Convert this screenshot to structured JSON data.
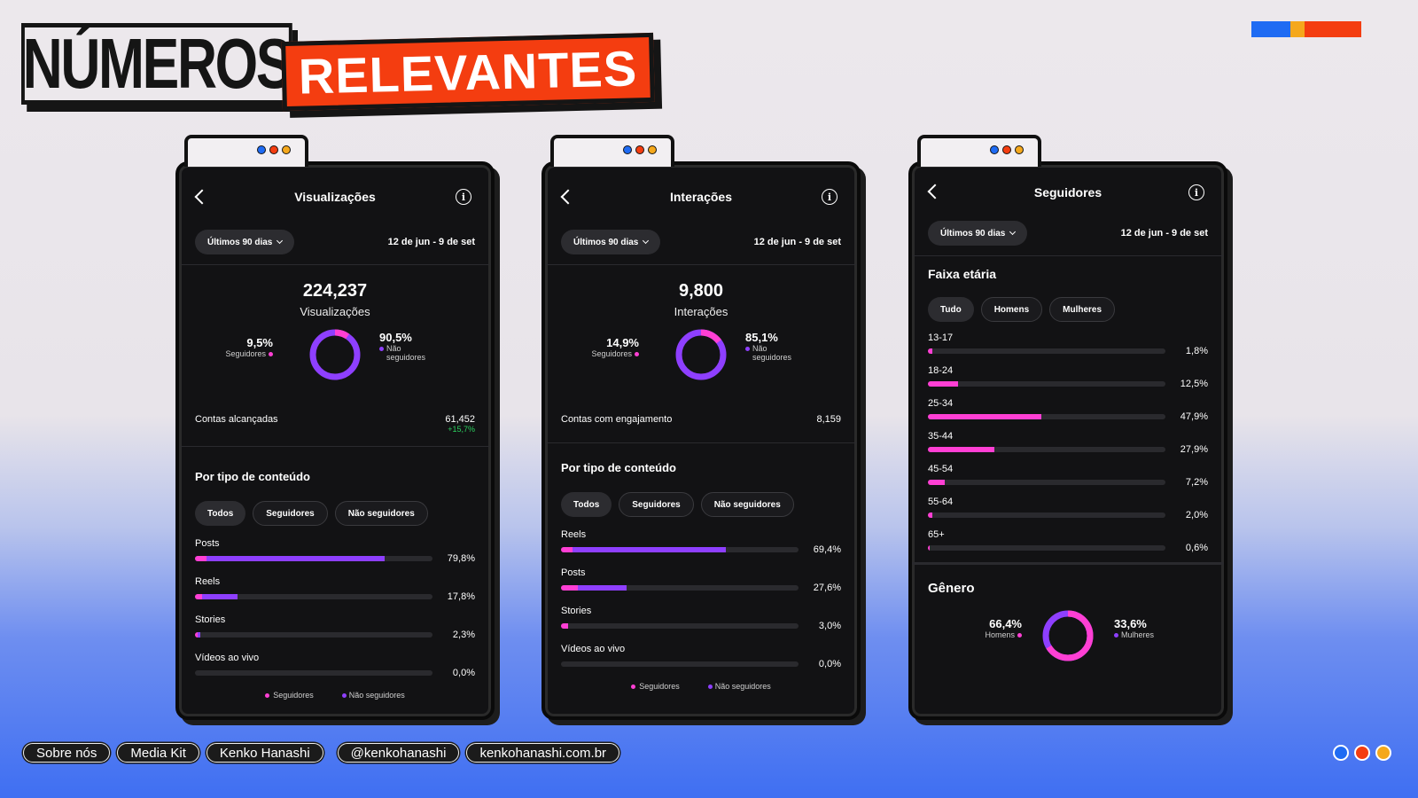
{
  "header": {
    "title_part1": "NÚMEROS",
    "title_part2": "RELEVANTES",
    "brand_colors": [
      "#1f6bf3",
      "#f5a81c",
      "#f43d10"
    ]
  },
  "colors": {
    "followers": "#ff3fd4",
    "non_followers": "#8e3fff",
    "positive": "#2bd15e",
    "accent_red": "#f43d10"
  },
  "panels": {
    "views": {
      "title": "Visualizações",
      "period": "Últimos 90 dias",
      "date_range": "12 de jun - 9 de set",
      "total": "224,237",
      "total_label": "Visualizações",
      "followers_pct": "9,5%",
      "followers_label": "Seguidores",
      "non_followers_pct": "90,5%",
      "non_followers_label_1": "Não",
      "non_followers_label_2": "seguidores",
      "followers_share": 9.5,
      "stat_label": "Contas alcançadas",
      "stat_value": "61,452",
      "stat_delta": "+15,7%",
      "section_title": "Por tipo de conteúdo",
      "tabs": [
        "Todos",
        "Seguidores",
        "Não seguidores"
      ],
      "content_types": [
        {
          "label": "Posts",
          "value": "79,8%",
          "pct": 79.8,
          "followers_part": 5
        },
        {
          "label": "Reels",
          "value": "17,8%",
          "pct": 17.8,
          "followers_part": 3
        },
        {
          "label": "Stories",
          "value": "2,3%",
          "pct": 2.3,
          "followers_part": 1.2
        },
        {
          "label": "Vídeos ao vivo",
          "value": "0,0%",
          "pct": 0,
          "followers_part": 0
        }
      ],
      "legend_followers": "Seguidores",
      "legend_non_followers": "Não seguidores"
    },
    "interactions": {
      "title": "Interações",
      "period": "Últimos 90 dias",
      "date_range": "12 de jun - 9 de set",
      "total": "9,800",
      "total_label": "Interações",
      "followers_pct": "14,9%",
      "followers_label": "Seguidores",
      "non_followers_pct": "85,1%",
      "non_followers_label_1": "Não",
      "non_followers_label_2": "seguidores",
      "followers_share": 14.9,
      "stat_label": "Contas com engajamento",
      "stat_value": "8,159",
      "section_title": "Por tipo de conteúdo",
      "tabs": [
        "Todos",
        "Seguidores",
        "Não seguidores"
      ],
      "content_types": [
        {
          "label": "Reels",
          "value": "69,4%",
          "pct": 69.4,
          "followers_part": 5
        },
        {
          "label": "Posts",
          "value": "27,6%",
          "pct": 27.6,
          "followers_part": 7
        },
        {
          "label": "Stories",
          "value": "3,0%",
          "pct": 3.0,
          "followers_part": 3.0
        },
        {
          "label": "Vídeos ao vivo",
          "value": "0,0%",
          "pct": 0,
          "followers_part": 0
        }
      ],
      "legend_followers": "Seguidores",
      "legend_non_followers": "Não seguidores"
    },
    "followers": {
      "title": "Seguidores",
      "period": "Últimos 90 dias",
      "date_range": "12 de jun - 9 de set",
      "age_title": "Faixa etária",
      "tabs": [
        "Tudo",
        "Homens",
        "Mulheres"
      ],
      "age_groups": [
        {
          "label": "13-17",
          "value": "1,8%",
          "pct": 1.8
        },
        {
          "label": "18-24",
          "value": "12,5%",
          "pct": 12.5
        },
        {
          "label": "25-34",
          "value": "47,9%",
          "pct": 47.9
        },
        {
          "label": "35-44",
          "value": "27,9%",
          "pct": 27.9
        },
        {
          "label": "45-54",
          "value": "7,2%",
          "pct": 7.2
        },
        {
          "label": "55-64",
          "value": "2,0%",
          "pct": 2.0
        },
        {
          "label": "65+",
          "value": "0,6%",
          "pct": 0.6
        }
      ],
      "gender_title": "Gênero",
      "men_pct": "66,4%",
      "men_label": "Homens",
      "women_pct": "33,6%",
      "women_label": "Mulheres",
      "men_share": 66.4
    }
  },
  "footer": {
    "links": [
      "Sobre nós",
      "Media Kit",
      "Kenko Hanashi"
    ],
    "handle": "@kenkohanashi",
    "website": "kenkohanashi.com.br",
    "dot_colors": [
      "#1f6bf3",
      "#f43d10",
      "#f5a81c"
    ]
  }
}
